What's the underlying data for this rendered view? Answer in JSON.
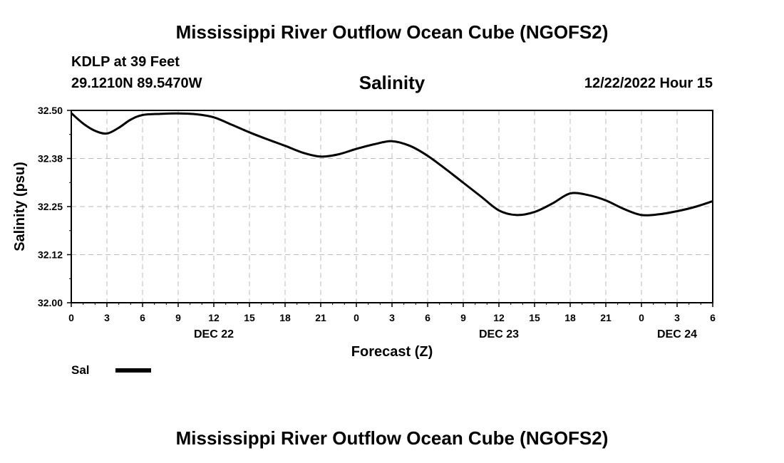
{
  "title": "Mississippi River Outflow Ocean Cube (NGOFS2)",
  "station": "KDLP at 39 Feet",
  "coords": "29.1210N  89.5470W",
  "datetime": "12/22/2022 Hour 15",
  "bottom_title": "Mississippi River Outflow Ocean Cube (NGOFS2)",
  "chart_data": {
    "type": "line",
    "title": "Salinity",
    "xlabel": "Forecast (Z)",
    "ylabel": "Salinity (psu)",
    "ylim": [
      32.0,
      32.5
    ],
    "xlim": [
      0,
      54
    ],
    "yticks": [
      32.0,
      32.125,
      32.25,
      32.375,
      32.5
    ],
    "ytick_labels": [
      "32.00",
      "32.12",
      "32.25",
      "32.38",
      "32.50"
    ],
    "xticks": [
      0,
      3,
      6,
      9,
      12,
      15,
      18,
      21,
      24,
      27,
      30,
      33,
      36,
      39,
      42,
      45,
      48,
      51,
      54
    ],
    "xtick_labels": [
      "0",
      "3",
      "6",
      "9",
      "12",
      "15",
      "18",
      "21",
      "0",
      "3",
      "6",
      "9",
      "12",
      "15",
      "18",
      "21",
      "0",
      "3",
      "6"
    ],
    "date_labels": [
      {
        "label": "DEC 22",
        "x": 12
      },
      {
        "label": "DEC 23",
        "x": 36
      },
      {
        "label": "DEC 24",
        "x": 51
      }
    ],
    "grid": true,
    "series": [
      {
        "name": "Sal",
        "color": "#000000",
        "x": [
          0,
          1,
          2,
          3,
          4,
          5,
          6,
          7.5,
          9,
          10.5,
          12,
          13.5,
          15,
          16.5,
          18,
          19.5,
          21,
          22.5,
          24,
          25.5,
          27,
          28.5,
          30,
          31.5,
          33,
          34.5,
          36,
          37.5,
          39,
          40.5,
          42,
          43.5,
          45,
          46.5,
          48,
          49.5,
          51,
          52.5,
          54
        ],
        "values": [
          32.493,
          32.466,
          32.447,
          32.44,
          32.455,
          32.476,
          32.488,
          32.491,
          32.492,
          32.49,
          32.482,
          32.463,
          32.443,
          32.425,
          32.408,
          32.39,
          32.38,
          32.386,
          32.4,
          32.412,
          32.42,
          32.408,
          32.382,
          32.348,
          32.312,
          32.276,
          32.24,
          32.228,
          32.236,
          32.258,
          32.284,
          32.28,
          32.266,
          32.244,
          32.228,
          32.23,
          32.238,
          32.249,
          32.264
        ]
      }
    ],
    "legend": "bottom-left"
  }
}
